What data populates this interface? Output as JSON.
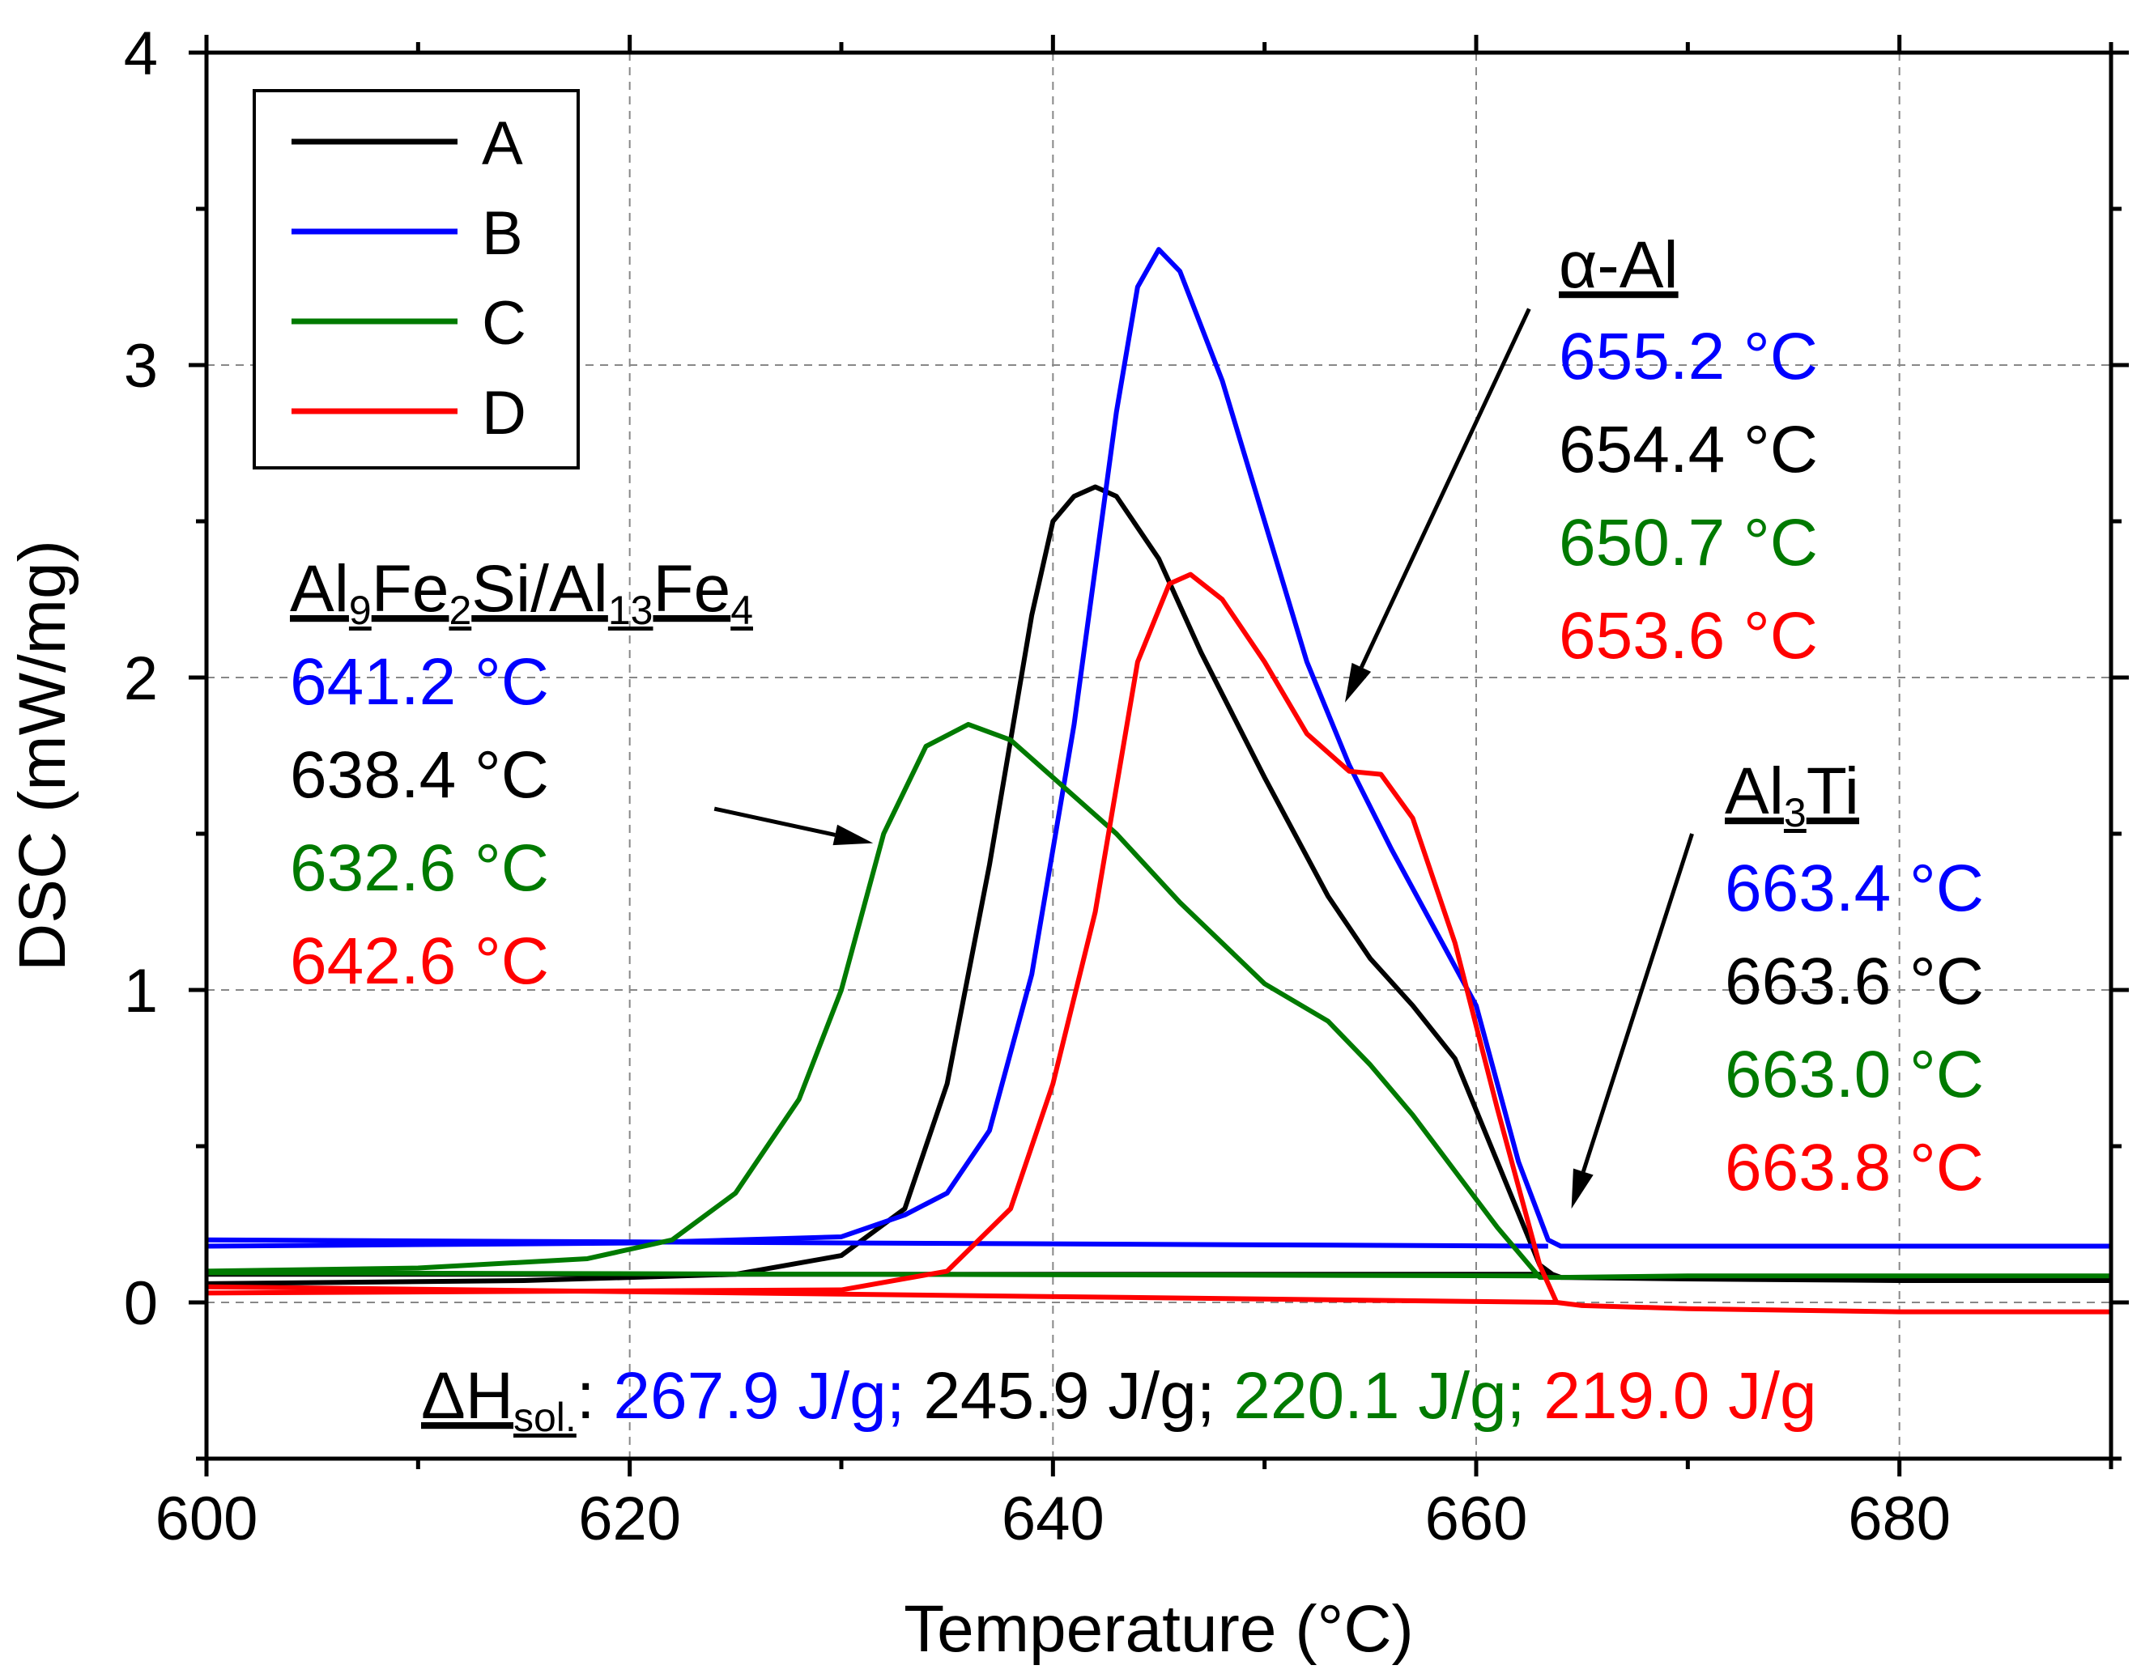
{
  "chart_data": {
    "type": "line",
    "xlabel": "Temperature (°C)",
    "ylabel": "DSC (mW/mg)",
    "xlim": [
      600,
      690
    ],
    "ylim": [
      -0.5,
      4
    ],
    "xticks": [
      600,
      620,
      640,
      660,
      680
    ],
    "xtick_labels": [
      "600",
      "620",
      "640",
      "660",
      "680"
    ],
    "yticks": [
      0,
      1,
      2,
      3,
      4
    ],
    "ytick_labels": [
      "0",
      "1",
      "2",
      "3",
      "4"
    ],
    "grid": true,
    "legend_position": "top-left",
    "series": [
      {
        "name": "A",
        "color": "#000000",
        "x": [
          600,
          615,
          625,
          630,
          633,
          635,
          637,
          639,
          640,
          641,
          642,
          643,
          645,
          647,
          650,
          653,
          655,
          657,
          659,
          661,
          663,
          663.6,
          664,
          670,
          680,
          690
        ],
        "y": [
          0.06,
          0.07,
          0.09,
          0.15,
          0.3,
          0.7,
          1.4,
          2.2,
          2.5,
          2.58,
          2.61,
          2.58,
          2.38,
          2.08,
          1.68,
          1.3,
          1.1,
          0.95,
          0.78,
          0.45,
          0.12,
          0.09,
          0.08,
          0.075,
          0.07,
          0.07
        ],
        "return_x": [
          663.6,
          600
        ],
        "return_y": [
          0.09,
          0.09
        ]
      },
      {
        "name": "B",
        "color": "#0000ff",
        "x": [
          600,
          620,
          630,
          633,
          635,
          637,
          639,
          641,
          643,
          644,
          645,
          646,
          648,
          650,
          652,
          654,
          656,
          658,
          660,
          662,
          663.4,
          664,
          670,
          680,
          690
        ],
        "y": [
          0.18,
          0.19,
          0.21,
          0.28,
          0.35,
          0.55,
          1.05,
          1.85,
          2.85,
          3.25,
          3.37,
          3.3,
          2.95,
          2.5,
          2.05,
          1.72,
          1.45,
          1.2,
          0.95,
          0.45,
          0.2,
          0.18,
          0.18,
          0.18,
          0.18
        ],
        "return_x": [
          663.4,
          600
        ],
        "return_y": [
          0.18,
          0.2
        ]
      },
      {
        "name": "C",
        "color": "#007a00",
        "x": [
          600,
          610,
          618,
          622,
          625,
          628,
          630,
          632,
          634,
          636,
          638,
          640,
          643,
          646,
          650,
          653,
          655,
          657,
          659,
          661,
          663,
          664,
          670,
          680,
          690
        ],
        "y": [
          0.1,
          0.11,
          0.14,
          0.2,
          0.35,
          0.65,
          1.0,
          1.5,
          1.78,
          1.85,
          1.8,
          1.68,
          1.5,
          1.28,
          1.02,
          0.9,
          0.76,
          0.6,
          0.42,
          0.24,
          0.08,
          0.08,
          0.085,
          0.085,
          0.085
        ],
        "return_x": [
          663.0,
          600
        ],
        "return_y": [
          0.085,
          0.095
        ]
      },
      {
        "name": "D",
        "color": "#ff0000",
        "x": [
          600,
          630,
          635,
          638,
          640,
          642,
          644,
          645.5,
          646.5,
          648,
          650,
          652,
          654,
          655.5,
          657,
          659,
          661,
          663,
          663.8,
          665,
          670,
          680,
          690
        ],
        "y": [
          0.03,
          0.04,
          0.1,
          0.3,
          0.7,
          1.25,
          2.05,
          2.3,
          2.33,
          2.25,
          2.05,
          1.82,
          1.7,
          1.69,
          1.55,
          1.15,
          0.62,
          0.12,
          0.0,
          -0.01,
          -0.02,
          -0.03,
          -0.03
        ],
        "return_x": [
          663.8,
          600
        ],
        "return_y": [
          0.0,
          0.05
        ]
      }
    ],
    "annotations": {
      "phase1": {
        "title_parts": [
          "Al",
          "9",
          "Fe",
          "2",
          "Si/Al",
          "13",
          "Fe",
          "4"
        ],
        "values": [
          "641.2 °C",
          "638.4 °C",
          "632.6 °C",
          "642.6 °C"
        ],
        "colors": [
          "#0000ff",
          "#000000",
          "#007a00",
          "#ff0000"
        ],
        "arrow_from": [
          624,
          1.58
        ],
        "arrow_to": [
          631.5,
          1.47
        ]
      },
      "phase2": {
        "title": "α-Al",
        "values": [
          "655.2 °C",
          "654.4 °C",
          "650.7 °C",
          "653.6 °C"
        ],
        "colors": [
          "#0000ff",
          "#000000",
          "#007a00",
          "#ff0000"
        ],
        "arrow_from": [
          662.5,
          3.18
        ],
        "arrow_to": [
          653.8,
          1.92
        ]
      },
      "phase3": {
        "title_parts": [
          "Al",
          "3",
          "Ti"
        ],
        "values": [
          "663.4 °C",
          "663.6 °C",
          "663.0 °C",
          "663.8 °C"
        ],
        "colors": [
          "#0000ff",
          "#000000",
          "#007a00",
          "#ff0000"
        ],
        "arrow_from": [
          670.2,
          1.5
        ],
        "arrow_to": [
          664.5,
          0.3
        ]
      },
      "enthalpy": {
        "label_parts": [
          "ΔH",
          "sol.",
          ": "
        ],
        "values": [
          "267.9 J/g;",
          "245.9 J/g;",
          "220.1 J/g;",
          "219.0 J/g"
        ],
        "colors": [
          "#0000ff",
          "#000000",
          "#007a00",
          "#ff0000"
        ]
      }
    }
  }
}
